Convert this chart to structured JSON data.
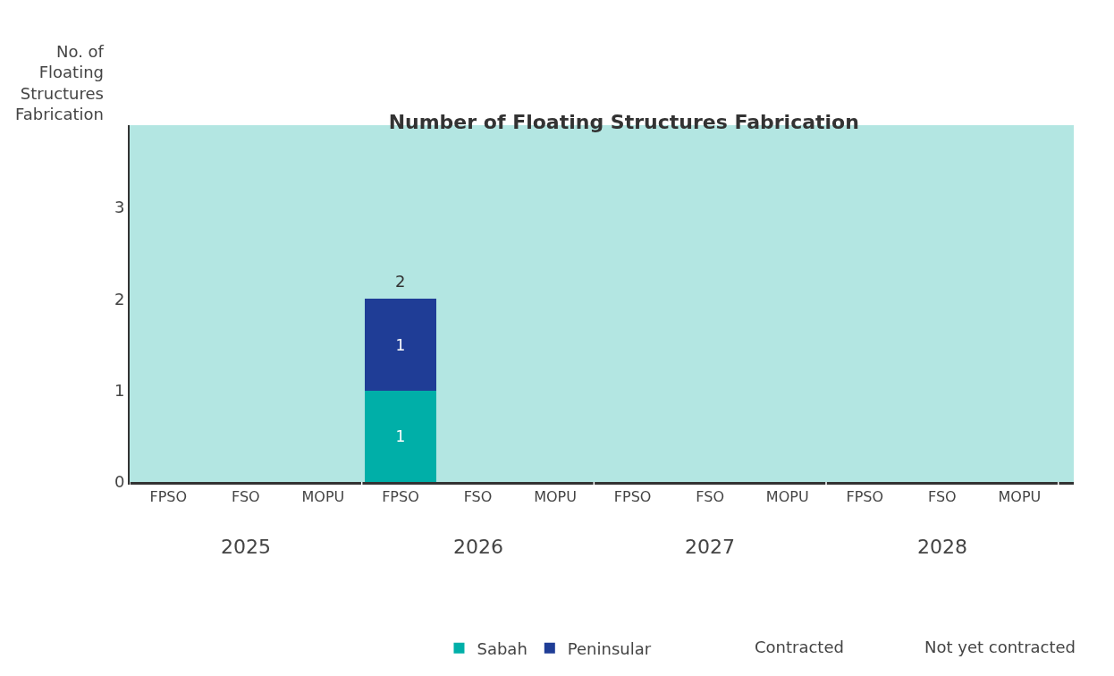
{
  "chart_data": {
    "type": "bar",
    "title": "Number of Floating Structures Fabrication",
    "ylabel": "No. of Floating Structures Fabrication",
    "categories": [
      "FPSO",
      "FSO",
      "MOPU",
      "FPSO",
      "FSO",
      "MOPU",
      "FPSO",
      "FSO",
      "MOPU",
      "FPSO",
      "FSO",
      "MOPU"
    ],
    "series": [
      {
        "name": "Sabah",
        "color": "#00afa8",
        "values": [
          null,
          null,
          null,
          1,
          null,
          null,
          null,
          null,
          null,
          null,
          null,
          null
        ]
      },
      {
        "name": "Peninsular",
        "color": "#1f3d96",
        "values": [
          null,
          null,
          null,
          1,
          null,
          null,
          null,
          null,
          null,
          null,
          null,
          null
        ]
      }
    ],
    "stacked": true,
    "data_labels": true,
    "totals": [
      null,
      null,
      null,
      "2",
      null,
      null,
      null,
      null,
      null,
      null,
      null,
      null
    ],
    "ylim": [
      0,
      3.9
    ],
    "yticks": [
      0,
      1,
      2,
      3
    ],
    "grid": false,
    "legend": "bottom",
    "annotations": [
      "2025",
      "2026",
      "2027",
      "2028",
      "Contracted",
      "Not yet contracted"
    ]
  }
}
